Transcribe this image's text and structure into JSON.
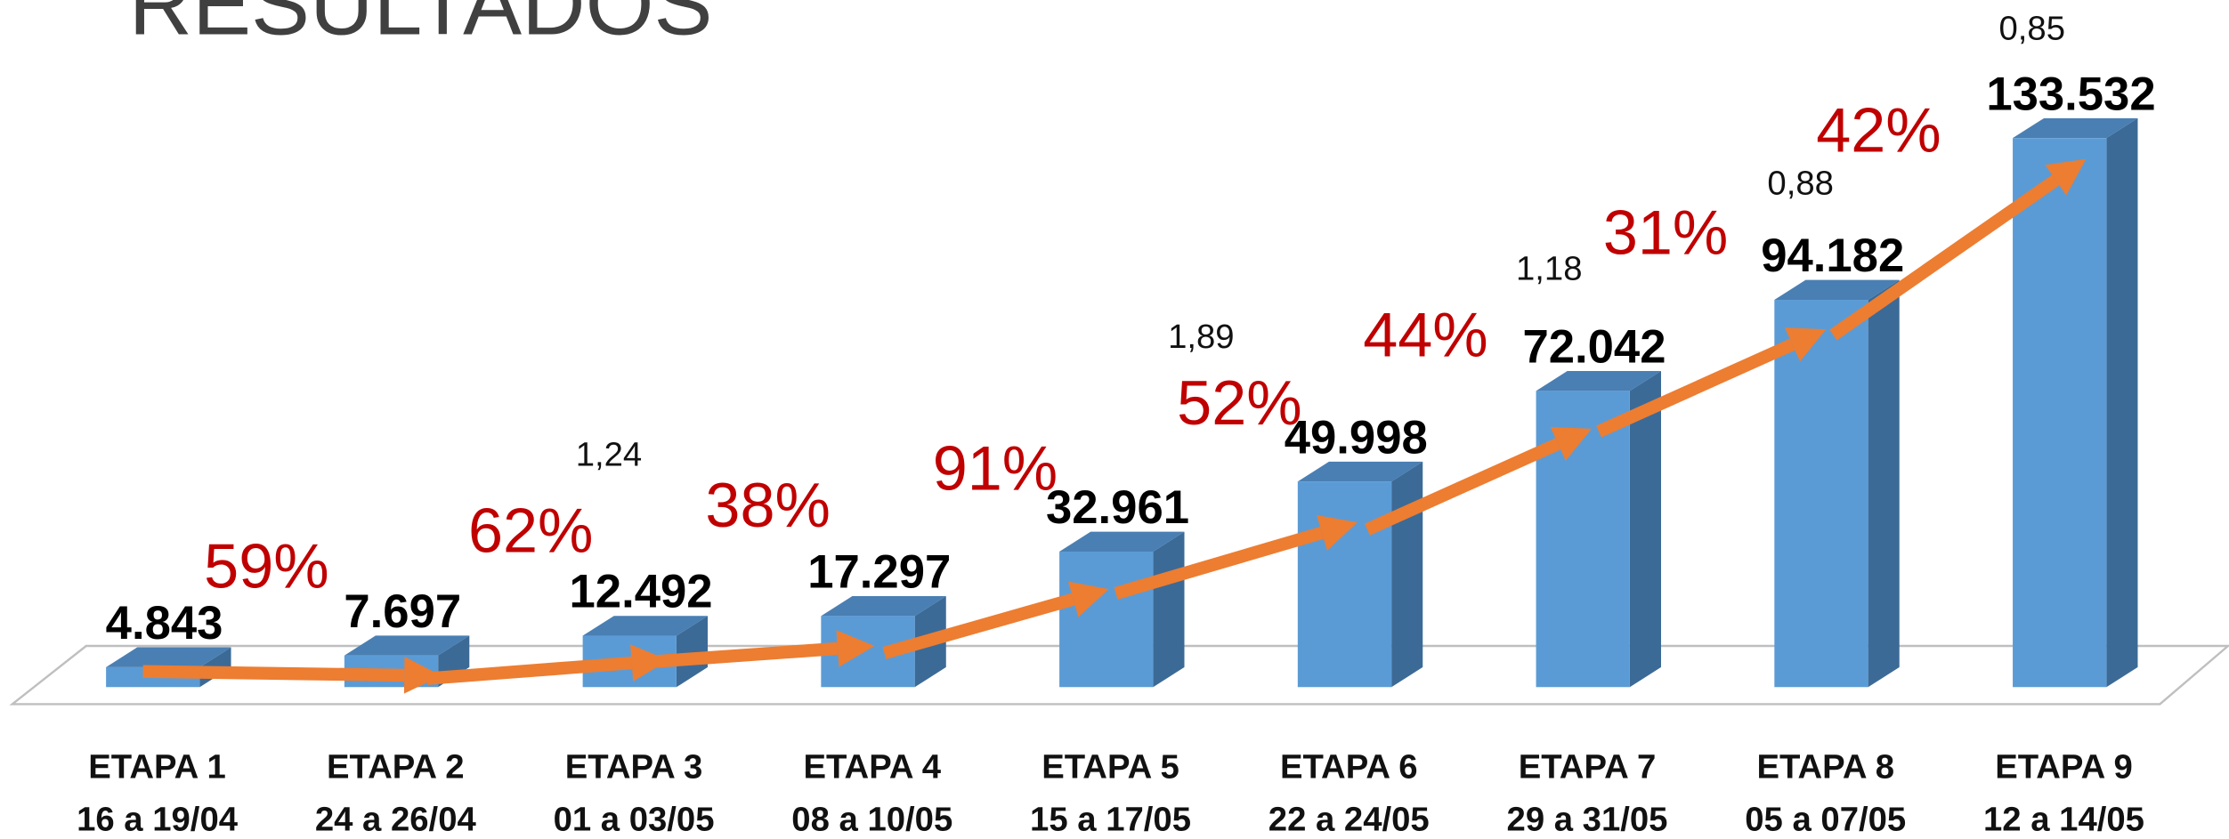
{
  "chart_data": {
    "type": "bar3d",
    "title": "RESULTADOS",
    "categories": [
      "ETAPA 1",
      "ETAPA 2",
      "ETAPA 3",
      "ETAPA 4",
      "ETAPA 5",
      "ETAPA 6",
      "ETAPA 7",
      "ETAPA 8",
      "ETAPA 9"
    ],
    "periods": [
      "16 a 19/04",
      "24 a 26/04",
      "01 a 03/05",
      "08 a 10/05",
      "15  a 17/05",
      "22  a 24/05",
      "29  a 31/05",
      "05  a 07/05",
      "12  a 14/05"
    ],
    "values": [
      4843,
      7697,
      12492,
      17297,
      32961,
      49998,
      72042,
      94182,
      133532
    ],
    "value_labels": [
      "4.843",
      "7.697",
      "12.492",
      "17.297",
      "32.961",
      "49.998",
      "72.042",
      "94.182",
      "133.532"
    ],
    "growth_labels": [
      "59%",
      "62%",
      "38%",
      "91%",
      "52%",
      "44%",
      "31%",
      "42%"
    ],
    "ratio_labels": [
      "1,24",
      "1,89",
      "1,18",
      "0,88",
      "0,85"
    ],
    "color": "#5b9bd5",
    "ylim": [
      0,
      135000
    ]
  }
}
